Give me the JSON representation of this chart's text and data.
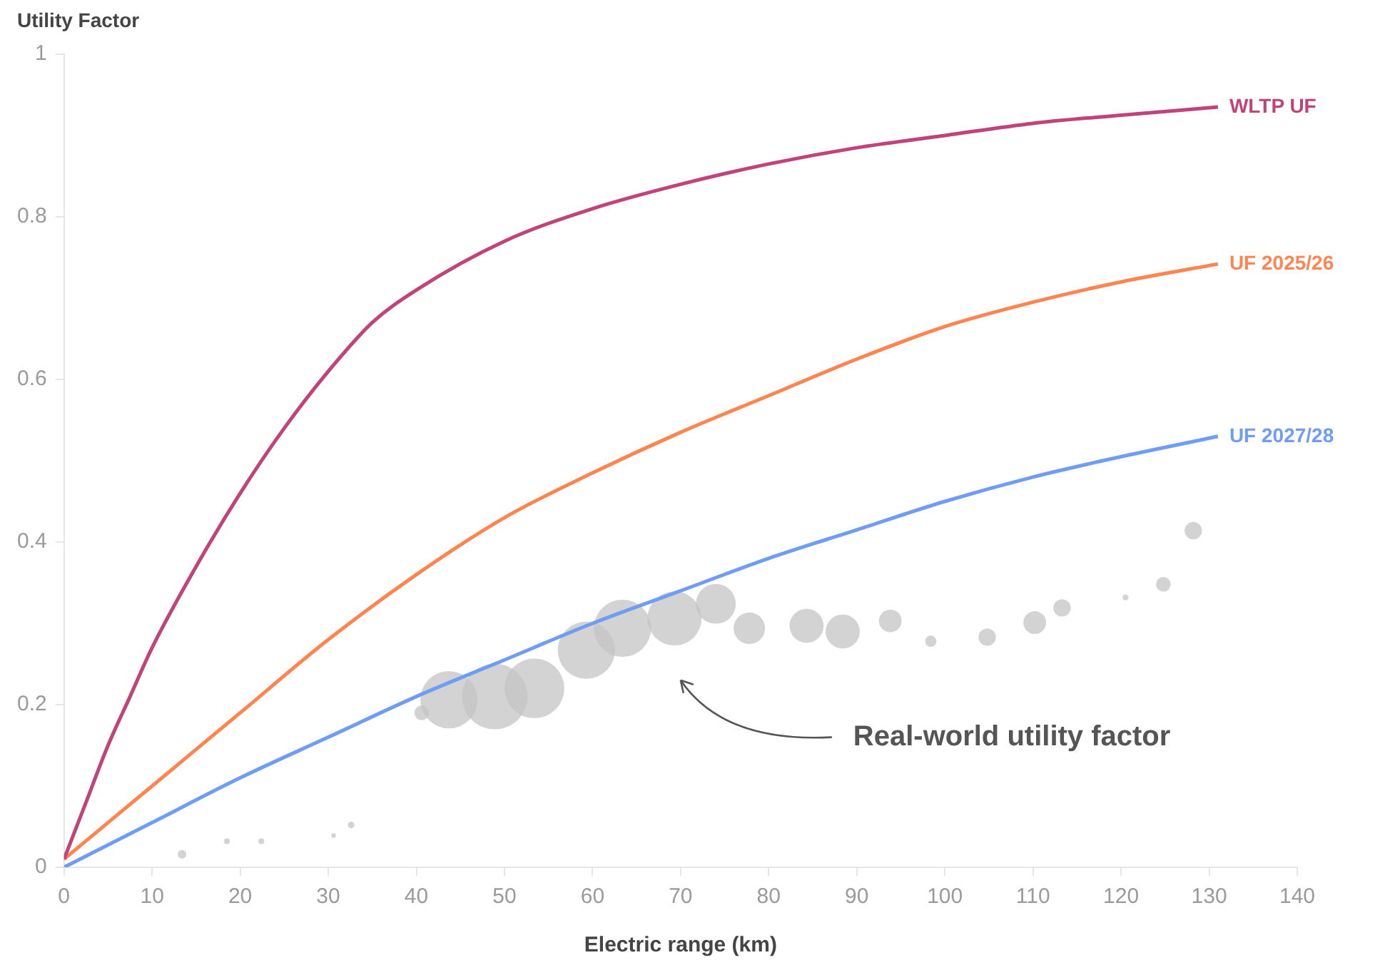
{
  "chart_data": {
    "type": "line",
    "xlabel": "Electric range (km)",
    "ylabel": "Utility Factor",
    "xlim": [
      0,
      140
    ],
    "xticks": [
      0,
      10,
      20,
      30,
      40,
      50,
      60,
      70,
      80,
      90,
      100,
      110,
      120,
      130,
      140
    ],
    "ylim": [
      0,
      1
    ],
    "yticks": [
      0,
      0.2,
      0.4,
      0.6,
      0.8,
      1
    ],
    "grid": false,
    "legend": false,
    "line_style": "solid",
    "annotations": [
      "Real-world utility factor"
    ],
    "series": [
      {
        "name": "WLTP UF",
        "color": "#c0437a",
        "x": [
          0,
          2.5,
          5,
          7.5,
          10,
          15,
          20,
          25,
          30,
          35,
          40,
          50,
          60,
          70,
          80,
          90,
          100,
          110,
          120,
          131
        ],
        "values": [
          0.01,
          0.08,
          0.15,
          0.21,
          0.27,
          0.37,
          0.46,
          0.54,
          0.61,
          0.67,
          0.71,
          0.77,
          0.81,
          0.84,
          0.865,
          0.885,
          0.9,
          0.915,
          0.925,
          0.935
        ]
      },
      {
        "name": "UF 2025/26",
        "color": "#ff8550",
        "x": [
          0,
          10,
          20,
          30,
          40,
          50,
          60,
          70,
          80,
          90,
          100,
          110,
          120,
          131
        ],
        "values": [
          0.01,
          0.1,
          0.19,
          0.28,
          0.36,
          0.43,
          0.485,
          0.535,
          0.58,
          0.625,
          0.665,
          0.695,
          0.72,
          0.742
        ]
      },
      {
        "name": "UF 2027/28",
        "color": "#6f9cf5",
        "x": [
          0,
          10,
          20,
          30,
          40,
          50,
          60,
          70,
          80,
          90,
          100,
          110,
          120,
          131
        ],
        "values": [
          0,
          0.055,
          0.11,
          0.16,
          0.21,
          0.255,
          0.3,
          0.34,
          0.38,
          0.415,
          0.45,
          0.48,
          0.505,
          0.53
        ]
      },
      {
        "type": "bubble",
        "color": "#c4c4c4",
        "x": [
          13.4,
          18.5,
          22.4,
          30.6,
          32.6,
          40.6,
          43.7,
          48.9,
          53.4,
          59.3,
          63.4,
          69.3,
          74,
          77.8,
          84.3,
          88.4,
          93.8,
          98.4,
          104.8,
          110.2,
          113.3,
          120.5,
          124.8,
          128.2
        ],
        "values": [
          0.016,
          0.032,
          0.032,
          0.039,
          0.052,
          0.19,
          0.206,
          0.21,
          0.22,
          0.267,
          0.294,
          0.306,
          0.324,
          0.294,
          0.297,
          0.29,
          0.303,
          0.278,
          0.283,
          0.301,
          0.319,
          0.332,
          0.348,
          0.414
        ],
        "sizes": [
          0.017,
          0.008,
          0.008,
          0.005,
          0.01,
          0.05,
          0.76,
          1,
          0.83,
          0.76,
          0.76,
          0.68,
          0.37,
          0.23,
          0.27,
          0.27,
          0.12,
          0.03,
          0.07,
          0.12,
          0.07,
          0.008,
          0.05,
          0.07
        ]
      }
    ]
  }
}
